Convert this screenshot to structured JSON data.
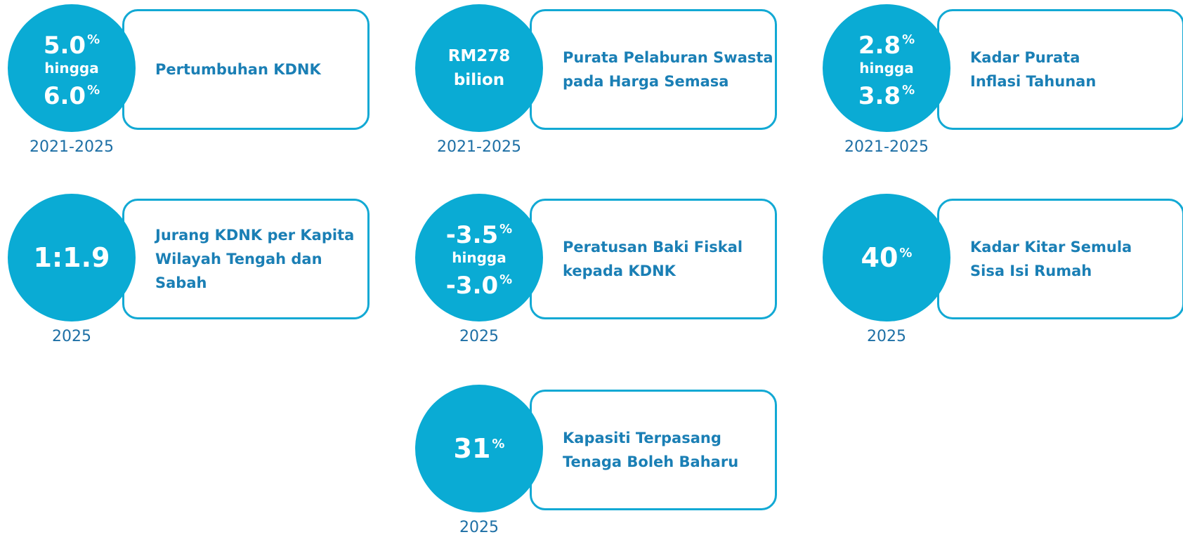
{
  "items": [
    {
      "circle": [
        {
          "text": "5.0",
          "sup": "%"
        },
        {
          "text": "hingga"
        },
        {
          "text": "6.0",
          "sup": "%"
        }
      ],
      "label": [
        "Pertumbuhan KDNK"
      ],
      "period": "2021-2025"
    },
    {
      "circle": [
        {
          "text": "RM278"
        },
        {
          "text": "bilion"
        }
      ],
      "label": [
        "Purata Pelaburan Swasta",
        "pada Harga Semasa"
      ],
      "period": "2021-2025"
    },
    {
      "circle": [
        {
          "text": "2.8",
          "sup": "%"
        },
        {
          "text": "hingga"
        },
        {
          "text": "3.8",
          "sup": "%"
        }
      ],
      "label": [
        "Kadar Purata",
        "Inflasi Tahunan"
      ],
      "period": "2021-2025"
    },
    {
      "circle": [
        {
          "text": "1:1.9"
        }
      ],
      "label": [
        "Jurang KDNK per Kapita",
        "Wilayah Tengah dan",
        "Sabah"
      ],
      "period": "2025"
    },
    {
      "circle": [
        {
          "text": "-3.5",
          "sup": "%"
        },
        {
          "text": "hingga"
        },
        {
          "text": "-3.0",
          "sup": "%"
        }
      ],
      "label": [
        "Peratusan Baki Fiskal",
        "kepada KDNK"
      ],
      "period": "2025"
    },
    {
      "circle": [
        {
          "text": "40",
          "sup": "%"
        }
      ],
      "label": [
        "Kadar Kitar Semula",
        "Sisa Isi Rumah"
      ],
      "period": "2025"
    },
    {
      "circle": [
        {
          "text": "31",
          "sup": "%"
        }
      ],
      "label": [
        "Kapasiti Terpasang",
        "Tenaga Boleh Baharu"
      ],
      "period": "2025"
    }
  ]
}
